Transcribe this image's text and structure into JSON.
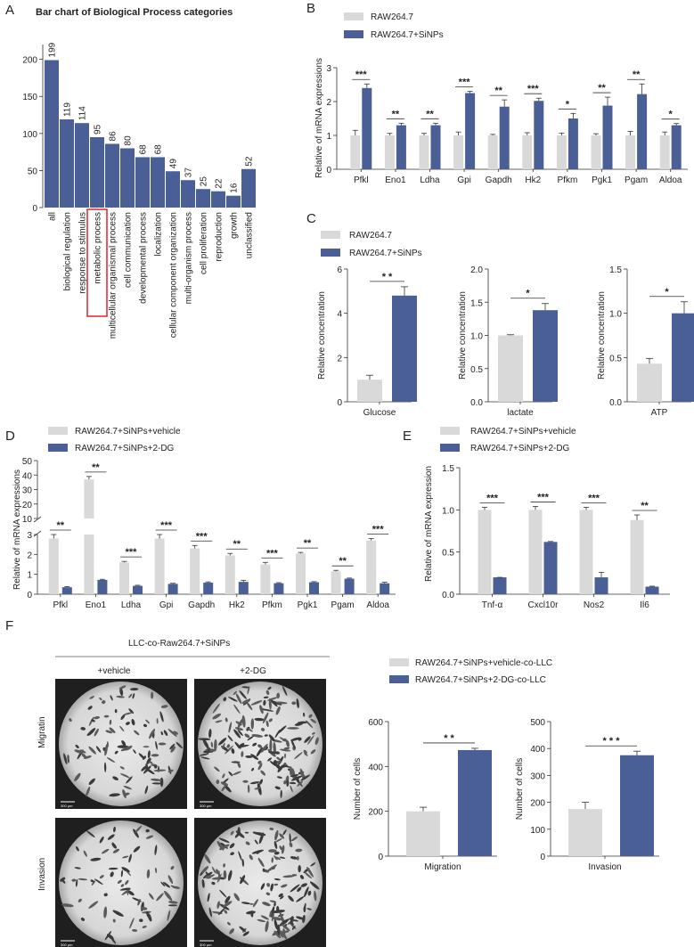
{
  "colors": {
    "blue": "#4a5f96",
    "gray": "#d9d9d9",
    "darkblue": "#4a5f96",
    "highlight": "#e0242a"
  },
  "panel_letters": [
    "A",
    "B",
    "C",
    "D",
    "E",
    "F"
  ],
  "chart_data": [
    {
      "id": "A",
      "type": "bar",
      "title": "Bar chart of Biological Process categories",
      "categories": [
        "all",
        "biological regulation",
        "response to stimulus",
        "metabolic process",
        "multicellular organismal process",
        "cell communication",
        "developmental process",
        "localization",
        "cellular component organization",
        "multi-organism process",
        "cell proliferation",
        "reproduction",
        "growth",
        "unclassified"
      ],
      "values": [
        199,
        119,
        114,
        95,
        86,
        80,
        68,
        68,
        49,
        37,
        25,
        22,
        16,
        52
      ],
      "ylim": [
        0,
        220
      ],
      "yticks": [
        0,
        50,
        100,
        150,
        200
      ],
      "highlighted": "metabolic process"
    },
    {
      "id": "B",
      "type": "bar",
      "ylabel": "Relative of mRNA expressions",
      "categories": [
        "Pfkl",
        "Eno1",
        "Ldha",
        "Gpi",
        "Gapdh",
        "Hk2",
        "Pfkm",
        "Pgk1",
        "Pgam",
        "Aldoa"
      ],
      "series": [
        {
          "name": "RAW264.7",
          "values": [
            1.0,
            1.0,
            1.0,
            1.0,
            1.0,
            1.0,
            1.0,
            1.0,
            1.0,
            1.0
          ],
          "errors": [
            0.15,
            0.06,
            0.06,
            0.1,
            0.03,
            0.08,
            0.07,
            0.05,
            0.12,
            0.1
          ]
        },
        {
          "name": "RAW264.7+SiNPs",
          "values": [
            2.4,
            1.3,
            1.3,
            2.25,
            1.85,
            2.02,
            1.5,
            1.88,
            2.22,
            1.3
          ],
          "errors": [
            0.12,
            0.06,
            0.06,
            0.05,
            0.2,
            0.08,
            0.15,
            0.25,
            0.3,
            0.05
          ]
        }
      ],
      "sig": [
        "***",
        "**",
        "**",
        "***",
        "**",
        "***",
        "*",
        "**",
        "**",
        "*"
      ],
      "ylim": [
        0,
        3
      ],
      "yticks": [
        0,
        1,
        2,
        3
      ]
    },
    {
      "id": "C",
      "type": "bar",
      "legend": [
        "RAW264.7",
        "RAW264.7+SiNPs"
      ],
      "ylabel": "Relative concentration",
      "subplots": [
        {
          "category": "Glucose",
          "values": [
            1.0,
            4.8
          ],
          "errors": [
            0.2,
            0.4
          ],
          "ylim": [
            0,
            6
          ],
          "yticks": [
            "0",
            "2",
            "4",
            "6"
          ],
          "sig": "* *"
        },
        {
          "category": "lactate",
          "values": [
            1.0,
            1.38
          ],
          "errors": [
            0.01,
            0.1
          ],
          "ylim": [
            0,
            2
          ],
          "yticks": [
            "0.0",
            "0.5",
            "1.0",
            "1.5",
            "2.0"
          ],
          "sig": "*"
        },
        {
          "category": "ATP",
          "values": [
            0.43,
            1.0
          ],
          "errors": [
            0.06,
            0.13
          ],
          "ylim": [
            0,
            1.5
          ],
          "yticks": [
            "0.0",
            "0.5",
            "1.0",
            "1.5"
          ],
          "sig": "*"
        }
      ]
    },
    {
      "id": "D",
      "type": "bar",
      "ylabel": "Relative of mRNA expressions",
      "categories": [
        "Pfkl",
        "Eno1",
        "Ldha",
        "Gpi",
        "Gapdh",
        "Hk2",
        "Pfkm",
        "Pgk1",
        "Pgam",
        "Aldoa"
      ],
      "series": [
        {
          "name": "RAW264.7+SiNPs+vehicle",
          "values": [
            2.8,
            37,
            1.6,
            2.8,
            2.3,
            1.95,
            1.5,
            2.05,
            1.15,
            2.7
          ],
          "errors": [
            0.25,
            2.0,
            0.05,
            0.2,
            0.15,
            0.1,
            0.1,
            0.05,
            0.05,
            0.1
          ]
        },
        {
          "name": "RAW264.7+SiNPs+2-DG",
          "values": [
            0.35,
            0.72,
            0.42,
            0.52,
            0.58,
            0.62,
            0.55,
            0.6,
            0.78,
            0.55
          ],
          "errors": [
            0.03,
            0.03,
            0.03,
            0.03,
            0.04,
            0.08,
            0.03,
            0.03,
            0.03,
            0.05
          ]
        }
      ],
      "sig": [
        "**",
        "**",
        "***",
        "***",
        "***",
        "**",
        "***",
        "**",
        "**",
        "***"
      ],
      "yticks_lower": [
        "0",
        "1",
        "2",
        "3"
      ],
      "yticks_upper": [
        "10",
        "20",
        "30",
        "40",
        "50"
      ]
    },
    {
      "id": "E",
      "type": "bar",
      "ylabel": "Relative of mRNA expression",
      "categories": [
        "Tnf-α",
        "Cxcl10r",
        "Nos2",
        "Il6"
      ],
      "series": [
        {
          "name": "RAW264.7+SiNPs+vehicle",
          "values": [
            1.0,
            1.0,
            1.0,
            0.88
          ],
          "errors": [
            0.03,
            0.04,
            0.03,
            0.06
          ]
        },
        {
          "name": "RAW264.7+SiNPs+2-DG",
          "values": [
            0.2,
            0.62,
            0.2,
            0.09
          ],
          "errors": [
            0.0,
            0.005,
            0.06,
            0.005
          ]
        }
      ],
      "sig": [
        "***",
        "***",
        "***",
        "**"
      ],
      "ylim": [
        0,
        1.5
      ],
      "yticks": [
        "0.0",
        "0.5",
        "1.0",
        "1.5"
      ]
    },
    {
      "id": "F",
      "type": "bar",
      "legend": [
        "RAW264.7+SiNPs+vehicle-co-LLC",
        "RAW264.7+SiNPs+2-DG-co-LLC"
      ],
      "ylabel": "Number of cells",
      "subplots": [
        {
          "category": "Migration",
          "values": [
            200,
            473
          ],
          "errors": [
            18,
            8
          ],
          "ylim": [
            0,
            600
          ],
          "yticks": [
            "0",
            "200",
            "400",
            "600"
          ],
          "sig": "* *"
        },
        {
          "category": "Invasion",
          "values": [
            175,
            375
          ],
          "errors": [
            25,
            15
          ],
          "ylim": [
            0,
            500
          ],
          "yticks": [
            "0",
            "100",
            "200",
            "300",
            "400",
            "500"
          ],
          "sig": "* * *"
        }
      ]
    }
  ],
  "micrographs": {
    "header": "LLC-co-Raw264.7+SiNPs",
    "columns": [
      "+vehicle",
      "+2-DG"
    ],
    "rows": [
      "Migratin",
      "Invasion"
    ],
    "scale": "300 μm"
  }
}
